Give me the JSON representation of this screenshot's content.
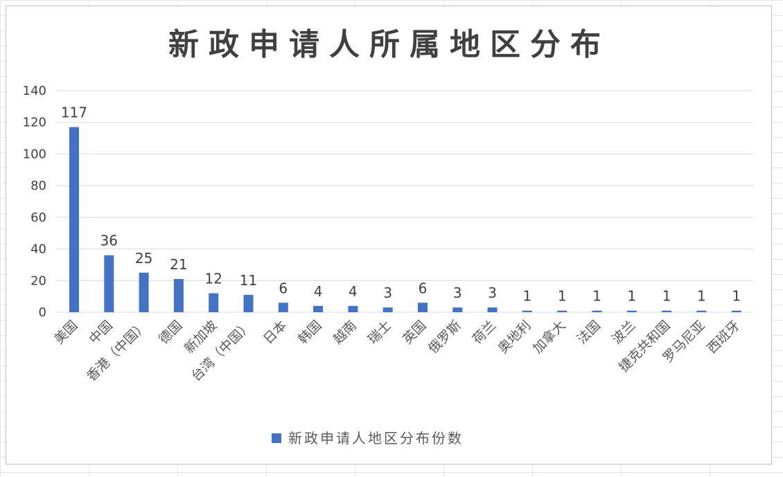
{
  "chart_data": {
    "type": "bar",
    "title": "新政申请人所属地区分布",
    "xlabel": "",
    "ylabel": "",
    "ylim": [
      0,
      140
    ],
    "yticks": [
      0,
      20,
      40,
      60,
      80,
      100,
      120,
      140
    ],
    "grid": true,
    "legend_position": "bottom",
    "categories": [
      "美国",
      "中国",
      "香港（中国）",
      "德国",
      "新加坡",
      "台湾（中国）",
      "日本",
      "韩国",
      "越南",
      "瑞士",
      "英国",
      "俄罗斯",
      "荷兰",
      "奥地利",
      "加拿大",
      "法国",
      "波兰",
      "捷克共和国",
      "罗马尼亚",
      "西班牙"
    ],
    "series": [
      {
        "name": "新政申请人地区分布份数",
        "color": "#4472c4",
        "values": [
          117,
          36,
          25,
          21,
          12,
          11,
          6,
          4,
          4,
          3,
          6,
          3,
          3,
          1,
          1,
          1,
          1,
          1,
          1,
          1
        ]
      }
    ]
  }
}
